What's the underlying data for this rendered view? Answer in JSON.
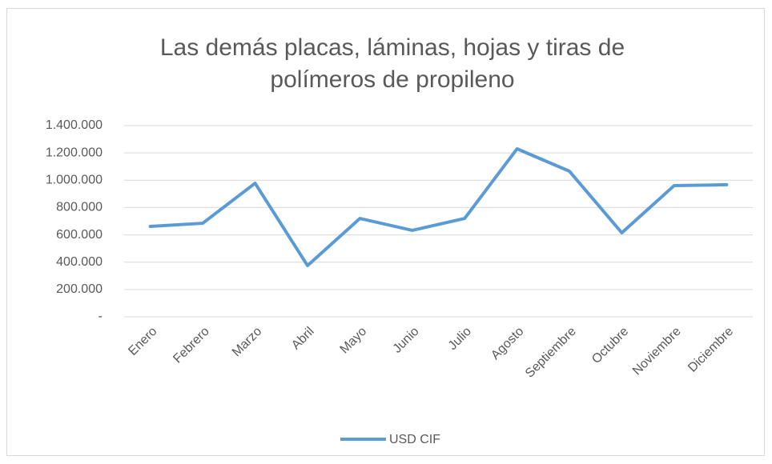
{
  "chart_data": {
    "type": "line",
    "title": "Las demás placas, láminas, hojas y tiras de polímeros de propileno",
    "categories": [
      "Enero",
      "Febrero",
      "Marzo",
      "Abril",
      "Mayo",
      "Junio",
      "Julio",
      "Agosto",
      "Septiembre",
      "Octubre",
      "Noviembre",
      "Diciembre"
    ],
    "series": [
      {
        "name": "USD CIF",
        "color": "#5b9bd5",
        "values": [
          662000,
          685000,
          978000,
          375000,
          720000,
          633000,
          720000,
          1230000,
          1066000,
          615000,
          961000,
          967000
        ]
      }
    ],
    "ylim": [
      0,
      1400000
    ],
    "yticks": [
      {
        "value": 0,
        "label": "-"
      },
      {
        "value": 200000,
        "label": "200.000"
      },
      {
        "value": 400000,
        "label": "400.000"
      },
      {
        "value": 600000,
        "label": "600.000"
      },
      {
        "value": 800000,
        "label": "800.000"
      },
      {
        "value": 1000000,
        "label": "1.000.000"
      },
      {
        "value": 1200000,
        "label": "1.200.000"
      },
      {
        "value": 1400000,
        "label": "1.400.000"
      }
    ],
    "grid": true,
    "legend": "bottom"
  }
}
